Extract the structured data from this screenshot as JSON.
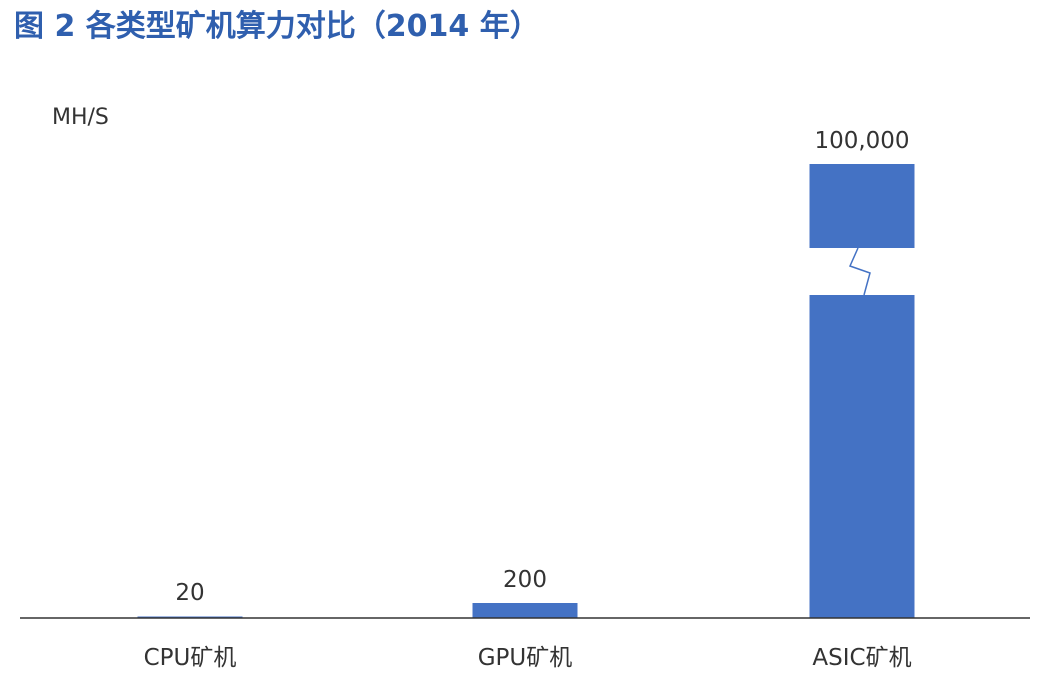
{
  "chart_data": {
    "type": "bar",
    "title": "图 2 各类型矿机算力对比（2014 年）",
    "ylabel": "MH/S",
    "xlabel": "",
    "categories": [
      "CPU矿机",
      "GPU矿机",
      "ASIC矿机"
    ],
    "values": [
      20,
      200,
      100000
    ],
    "value_labels": [
      "20",
      "200",
      "100,000"
    ],
    "axis_break": true,
    "grid": false,
    "legend": "none",
    "colors": {
      "bar": "#4472c4",
      "title": "#2f5fae",
      "text": "#333333",
      "axis": "#333333"
    }
  }
}
